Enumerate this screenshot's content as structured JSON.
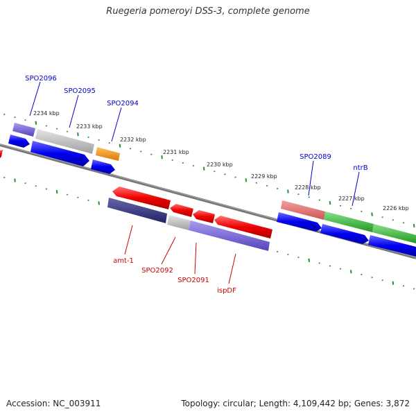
{
  "title": "Ruegeria pomeroyi DSS-3, complete genome",
  "footer": {
    "accession": "Accession: NC_003911",
    "info": "Topology: circular; Length: 4,109,442 bp; Genes: 3,872"
  },
  "colors": {
    "backbone": "#777777",
    "tick": "#2e8b2e",
    "label_forward": "#0000cc",
    "label_reverse": "#cc0000"
  },
  "ticks": [
    "2234 kbp",
    "2233 kbp",
    "2232 kbp",
    "2231 kbp",
    "2230 kbp",
    "2229 kbp",
    "2228 kbp",
    "2227 kbp",
    "2226 kbp"
  ],
  "upper_labels": [
    "SPO2096",
    "SPO2095",
    "SPO2094",
    "SPO2089",
    "ntrB"
  ],
  "lower_labels": [
    "amt-1",
    "SPO2092",
    "SPO2091",
    "ispDF"
  ],
  "tracks": {
    "forward_cds_color": "#0000ee",
    "reverse_cds_color": "#ee0000",
    "go_colors": [
      "#7766dd",
      "#bbbbbb",
      "#ff9900",
      "#ee7777",
      "#33bb33",
      "#333388"
    ]
  }
}
